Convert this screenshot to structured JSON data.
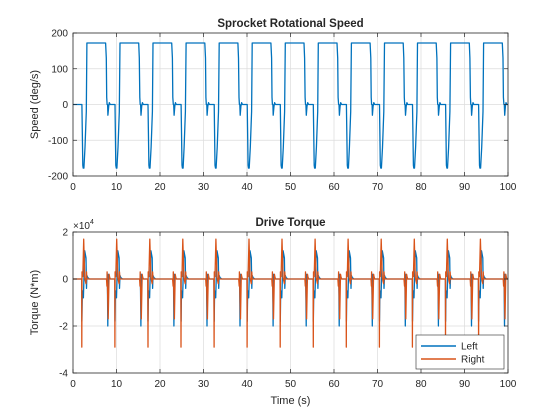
{
  "chart_data": [
    {
      "type": "line",
      "title": "Sprocket Rotational Speed",
      "xlabel": "",
      "ylabel": "Speed (deg/s)",
      "xlim": [
        0,
        100
      ],
      "ylim": [
        -200,
        200
      ],
      "xticks": [
        "0",
        "10",
        "20",
        "30",
        "40",
        "50",
        "60",
        "70",
        "80",
        "90",
        "100"
      ],
      "yticks": [
        "-200",
        "-100",
        "0",
        "100",
        "200"
      ],
      "grid": true,
      "series": [
        {
          "name": "",
          "color": "#0072BD",
          "period_s": 7.6,
          "cycle_x": [
            0,
            0.2,
            0.3,
            0.45,
            0.7,
            1.0,
            1.15,
            5.4,
            5.45,
            5.6,
            5.7,
            5.8,
            5.9,
            5.98,
            6.15,
            6.3,
            6.5,
            7.0,
            7.6
          ],
          "cycle_y": [
            0,
            -170,
            -178,
            -178,
            -120,
            -20,
            172,
            172,
            172,
            130,
            20,
            0,
            0,
            -30,
            -5,
            5,
            0,
            0,
            0
          ],
          "start_x": [
            0,
            2.0,
            2.05
          ],
          "start_y": [
            0,
            0,
            0
          ]
        }
      ]
    },
    {
      "type": "line",
      "title": "Drive Torque",
      "xlabel": "Time (s)",
      "ylabel": "Torque (N*m)",
      "exponent_label": "×10",
      "exponent_power": "4",
      "xlim": [
        0,
        100
      ],
      "ylim": [
        -40000,
        20000
      ],
      "xticks": [
        "0",
        "10",
        "20",
        "30",
        "40",
        "50",
        "60",
        "70",
        "80",
        "90",
        "100"
      ],
      "yticks": [
        "-4",
        "-2",
        "0",
        "2"
      ],
      "grid": true,
      "legend_position": "bottom-right",
      "series": [
        {
          "name": "Left",
          "color": "#0072BD",
          "period_s": 7.6,
          "cycle_x": [
            0,
            0.05,
            0.15,
            0.4,
            0.7,
            1.0,
            1.1,
            1.2,
            1.4,
            1.8,
            2.2,
            5.9,
            6.0,
            6.1,
            6.3,
            6.6,
            7.6
          ],
          "cycle_y": [
            0,
            -18000,
            -5000,
            -8000,
            12000,
            9000,
            -4000,
            1500,
            600,
            0,
            0,
            0,
            -20000,
            2000,
            1000,
            0,
            0
          ]
        },
        {
          "name": "Right",
          "color": "#D95319",
          "period_s": 7.6,
          "cycle_x": [
            0,
            0.03,
            0.08,
            0.25,
            0.45,
            0.7,
            1.0,
            1.1,
            1.2,
            1.5,
            2.0,
            5.7,
            5.8,
            5.85,
            6.1,
            6.3,
            6.5,
            7.6
          ],
          "cycle_y": [
            0,
            -29000,
            3000,
            1000,
            17000,
            500,
            -2000,
            3000,
            0,
            0,
            0,
            0,
            -3000,
            3000,
            -17000,
            2000,
            0,
            0
          ]
        }
      ]
    }
  ]
}
